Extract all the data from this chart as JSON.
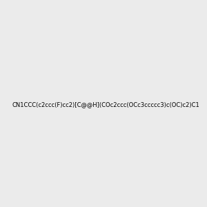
{
  "smiles": "CN1CCC(c2ccc(F)cc2)[C@@H](COc2ccc(OCc3ccccc3)c(OC)c2)C1",
  "img_size": [
    300,
    300
  ],
  "background": "#ebebeb",
  "atom_colors": {
    "O": "#ff0000",
    "N": "#0000ff",
    "F": "#ff00ff"
  },
  "title": ""
}
